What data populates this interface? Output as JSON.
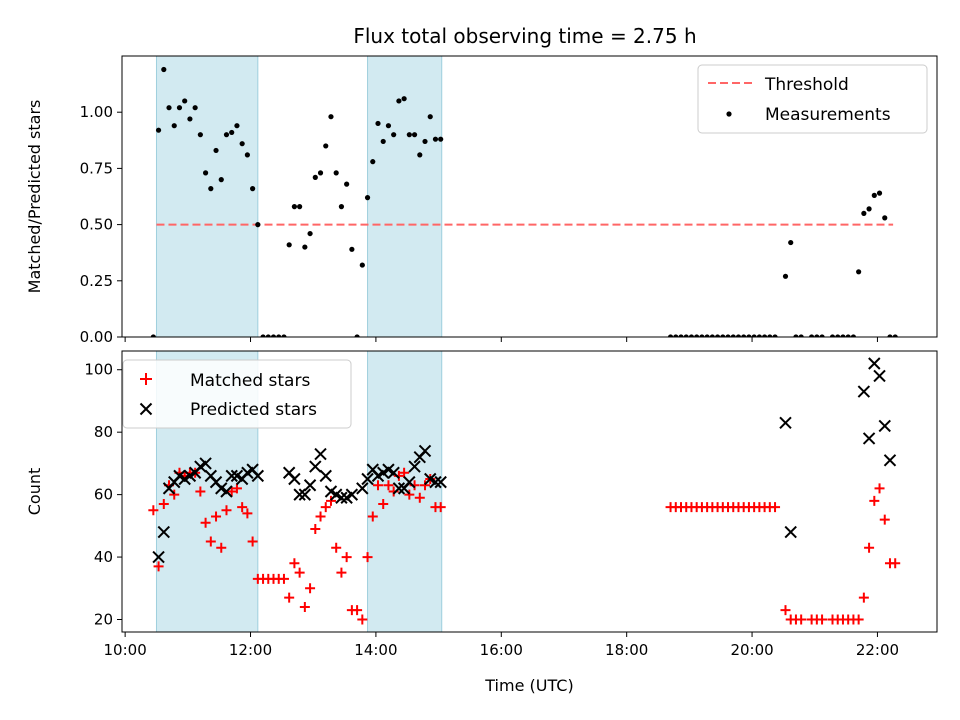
{
  "figure_title": "Flux total observing time = 2.75 h",
  "colors": {
    "shade": "#add8e6",
    "threshold": "#ff6666",
    "measurement": "#000000",
    "matched": "#ff0000",
    "predicted": "#000000"
  },
  "chart_data": [
    {
      "type": "scatter",
      "title": "Flux total observing time = 2.75 h",
      "xlabel": "",
      "ylabel": "Matched/Predicted stars",
      "xlim": [
        "09:57",
        "22:57"
      ],
      "ylim": [
        0,
        1.25
      ],
      "yticks": [
        0.0,
        0.25,
        0.5,
        0.75,
        1.0
      ],
      "ytick_labels": [
        "0.00",
        "0.25",
        "0.50",
        "0.75",
        "1.00"
      ],
      "xticks": [
        "10:00",
        "12:00",
        "14:00",
        "16:00",
        "18:00",
        "20:00",
        "22:00"
      ],
      "shaded_regions": [
        [
          "10:30",
          "12:07"
        ],
        [
          "13:52",
          "15:03"
        ]
      ],
      "threshold": {
        "name": "Threshold",
        "y": 0.5,
        "x_range": [
          "10:30",
          "22:15"
        ],
        "style": "dashed"
      },
      "legend": [
        "Threshold",
        "Measurements"
      ],
      "legend_position": "top-right",
      "series": [
        {
          "name": "Measurements",
          "marker": "dot",
          "x": [
            "10:27",
            "10:32",
            "10:37",
            "10:42",
            "10:47",
            "10:52",
            "10:57",
            "11:02",
            "11:07",
            "11:12",
            "11:17",
            "11:22",
            "11:27",
            "11:32",
            "11:37",
            "11:42",
            "11:47",
            "11:52",
            "11:57",
            "12:02",
            "12:07",
            "12:12",
            "12:17",
            "12:22",
            "12:27",
            "12:32",
            "12:37",
            "12:42",
            "12:47",
            "12:52",
            "12:57",
            "13:02",
            "13:07",
            "13:12",
            "13:17",
            "13:22",
            "13:27",
            "13:32",
            "13:37",
            "13:42",
            "13:47",
            "13:52",
            "13:57",
            "14:02",
            "14:07",
            "14:12",
            "14:17",
            "14:22",
            "14:27",
            "14:32",
            "14:37",
            "14:42",
            "14:47",
            "14:52",
            "14:57",
            "15:02",
            "18:42",
            "18:47",
            "18:52",
            "18:57",
            "19:02",
            "19:07",
            "19:12",
            "19:17",
            "19:22",
            "19:27",
            "19:32",
            "19:37",
            "19:42",
            "19:47",
            "19:52",
            "19:57",
            "20:02",
            "20:07",
            "20:12",
            "20:17",
            "20:22",
            "20:32",
            "20:37",
            "20:42",
            "20:47",
            "20:57",
            "21:02",
            "21:07",
            "21:17",
            "21:22",
            "21:27",
            "21:32",
            "21:37",
            "21:42",
            "21:47",
            "21:52",
            "21:57",
            "22:02",
            "22:07",
            "22:12",
            "22:17"
          ],
          "y": [
            0.0,
            0.92,
            1.19,
            1.02,
            0.94,
            1.02,
            1.05,
            0.97,
            1.02,
            0.9,
            0.73,
            0.66,
            0.83,
            0.7,
            0.9,
            0.91,
            0.94,
            0.86,
            0.81,
            0.66,
            0.5,
            0.0,
            0.0,
            0.0,
            0.0,
            0.0,
            0.41,
            0.58,
            0.58,
            0.4,
            0.46,
            0.71,
            0.73,
            0.85,
            0.98,
            0.73,
            0.58,
            0.68,
            0.39,
            0.0,
            0.32,
            0.62,
            0.78,
            0.95,
            0.87,
            0.94,
            0.9,
            1.05,
            1.06,
            0.9,
            0.9,
            0.81,
            0.87,
            0.98,
            0.88,
            0.88,
            0.0,
            0.0,
            0.0,
            0.0,
            0.0,
            0.0,
            0.0,
            0.0,
            0.0,
            0.0,
            0.0,
            0.0,
            0.0,
            0.0,
            0.0,
            0.0,
            0.0,
            0.0,
            0.0,
            0.0,
            0.0,
            0.27,
            0.42,
            0.0,
            0.0,
            0.0,
            0.0,
            0.0,
            0.0,
            0.0,
            0.0,
            0.0,
            0.0,
            0.29,
            0.55,
            0.57,
            0.63,
            0.64,
            0.53,
            0.0,
            0.0
          ]
        }
      ]
    },
    {
      "type": "scatter",
      "title": "",
      "xlabel": "Time (UTC)",
      "ylabel": "Count",
      "xlim": [
        "09:57",
        "22:57"
      ],
      "ylim": [
        16,
        106
      ],
      "yticks": [
        20,
        40,
        60,
        80,
        100
      ],
      "ytick_labels": [
        "20",
        "40",
        "60",
        "80",
        "100"
      ],
      "xticks": [
        "10:00",
        "12:00",
        "14:00",
        "16:00",
        "18:00",
        "20:00",
        "22:00"
      ],
      "xtick_labels": [
        "10:00",
        "12:00",
        "14:00",
        "16:00",
        "18:00",
        "20:00",
        "22:00"
      ],
      "shaded_regions": [
        [
          "10:30",
          "12:07"
        ],
        [
          "13:52",
          "15:03"
        ]
      ],
      "legend": [
        "Matched stars",
        "Predicted stars"
      ],
      "legend_position": "top-left",
      "series": [
        {
          "name": "Matched stars",
          "marker": "plus",
          "x": [
            "10:27",
            "10:32",
            "10:37",
            "10:42",
            "10:47",
            "10:52",
            "10:57",
            "11:02",
            "11:07",
            "11:12",
            "11:17",
            "11:22",
            "11:27",
            "11:32",
            "11:37",
            "11:42",
            "11:47",
            "11:52",
            "11:57",
            "12:02",
            "12:07",
            "12:12",
            "12:17",
            "12:22",
            "12:27",
            "12:32",
            "12:37",
            "12:42",
            "12:47",
            "12:52",
            "12:57",
            "13:02",
            "13:07",
            "13:12",
            "13:17",
            "13:22",
            "13:27",
            "13:32",
            "13:37",
            "13:42",
            "13:47",
            "13:52",
            "13:57",
            "14:02",
            "14:07",
            "14:12",
            "14:17",
            "14:22",
            "14:27",
            "14:32",
            "14:37",
            "14:42",
            "14:47",
            "14:52",
            "14:57",
            "15:02",
            "18:42",
            "18:47",
            "18:52",
            "18:57",
            "19:02",
            "19:07",
            "19:12",
            "19:17",
            "19:22",
            "19:27",
            "19:32",
            "19:37",
            "19:42",
            "19:47",
            "19:52",
            "19:57",
            "20:02",
            "20:07",
            "20:12",
            "20:17",
            "20:22",
            "20:32",
            "20:37",
            "20:42",
            "20:47",
            "20:57",
            "21:02",
            "21:07",
            "21:17",
            "21:22",
            "21:27",
            "21:32",
            "21:37",
            "21:42",
            "21:47",
            "21:52",
            "21:57",
            "22:02",
            "22:07",
            "22:12",
            "22:17"
          ],
          "y": [
            55,
            37,
            57,
            63,
            60,
            67,
            66,
            67,
            67,
            61,
            51,
            45,
            53,
            43,
            55,
            61,
            62,
            56,
            54,
            45,
            33,
            33,
            33,
            33,
            33,
            33,
            27,
            38,
            35,
            24,
            30,
            49,
            53,
            56,
            58,
            43,
            35,
            40,
            23,
            23,
            20,
            40,
            53,
            63,
            57,
            63,
            61,
            66,
            67,
            60,
            63,
            59,
            63,
            65,
            56,
            56,
            56,
            56,
            56,
            56,
            56,
            56,
            56,
            56,
            56,
            56,
            56,
            56,
            56,
            56,
            56,
            56,
            56,
            56,
            56,
            56,
            56,
            23,
            20,
            20,
            20,
            20,
            20,
            20,
            20,
            20,
            20,
            20,
            20,
            20,
            27,
            43,
            58,
            62,
            52,
            38,
            38
          ]
        },
        {
          "name": "Predicted stars",
          "marker": "x",
          "x": [
            "10:32",
            "10:37",
            "10:42",
            "10:47",
            "10:52",
            "10:57",
            "11:02",
            "11:07",
            "11:12",
            "11:17",
            "11:22",
            "11:27",
            "11:32",
            "11:37",
            "11:42",
            "11:47",
            "11:52",
            "11:57",
            "12:02",
            "12:07",
            "12:37",
            "12:42",
            "12:47",
            "12:52",
            "12:57",
            "13:02",
            "13:07",
            "13:12",
            "13:17",
            "13:22",
            "13:27",
            "13:32",
            "13:37",
            "13:47",
            "13:52",
            "13:57",
            "14:02",
            "14:07",
            "14:12",
            "14:17",
            "14:22",
            "14:27",
            "14:32",
            "14:37",
            "14:42",
            "14:47",
            "14:52",
            "14:57",
            "15:02",
            "20:32",
            "20:37",
            "21:47",
            "21:52",
            "21:57",
            "22:02",
            "22:07",
            "22:12"
          ],
          "y": [
            40,
            48,
            62,
            64,
            66,
            65,
            66,
            67,
            69,
            70,
            66,
            64,
            62,
            61,
            66,
            66,
            65,
            67,
            68,
            66,
            67,
            65,
            60,
            60,
            63,
            69,
            73,
            66,
            61,
            60,
            59,
            59,
            60,
            62,
            65,
            68,
            66,
            67,
            68,
            67,
            62,
            62,
            64,
            69,
            72,
            74,
            65,
            64,
            64,
            83,
            48,
            93,
            78,
            102,
            98,
            82,
            71
          ]
        }
      ]
    }
  ]
}
